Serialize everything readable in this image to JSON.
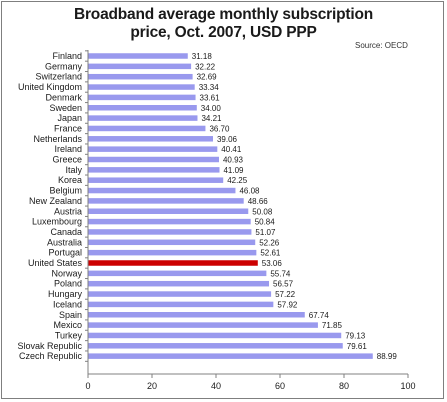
{
  "title_line1": "Broadband average monthly subscription",
  "title_line2": "price, Oct. 2007, USD PPP",
  "source": "Source: OECD",
  "chart_data": {
    "type": "bar",
    "orientation": "horizontal",
    "title": "Broadband average monthly subscription price, Oct. 2007, USD PPP",
    "categories": [
      "Finland",
      "Germany",
      "Switzerland",
      "United Kingdom",
      "Denmark",
      "Sweden",
      "Japan",
      "France",
      "Netherlands",
      "Ireland",
      "Greece",
      "Italy",
      "Korea",
      "Belgium",
      "New Zealand",
      "Austria",
      "Luxembourg",
      "Canada",
      "Australia",
      "Portugal",
      "United States",
      "Norway",
      "Poland",
      "Hungary",
      "Iceland",
      "Spain",
      "Mexico",
      "Turkey",
      "Slovak Republic",
      "Czech Republic"
    ],
    "values": [
      31.18,
      32.22,
      32.69,
      33.34,
      33.61,
      34.0,
      34.21,
      36.7,
      39.06,
      40.41,
      40.93,
      41.09,
      42.25,
      46.08,
      48.66,
      50.08,
      50.84,
      51.07,
      52.26,
      52.61,
      53.06,
      55.74,
      56.57,
      57.22,
      57.92,
      67.74,
      71.85,
      79.13,
      79.61,
      88.99
    ],
    "value_labels": [
      "31.18",
      "32.22",
      "32.69",
      "33.34",
      "33.61",
      "34.00",
      "34.21",
      "36.70",
      "39.06",
      "40.41",
      "40.93",
      "41.09",
      "42.25",
      "46.08",
      "48.66",
      "50.08",
      "50.84",
      "51.07",
      "52.26",
      "52.61",
      "53.06",
      "55.74",
      "56.57",
      "57.22",
      "57.92",
      "67.74",
      "71.85",
      "79.13",
      "79.61",
      "88.99"
    ],
    "highlight": "United States",
    "xlim": [
      0,
      100
    ],
    "xticks": [
      0,
      20,
      40,
      60,
      80,
      100
    ],
    "grid": false,
    "colors": {
      "bar": "#9999ee",
      "highlight": "#cc0000",
      "axis": "#808080"
    }
  }
}
